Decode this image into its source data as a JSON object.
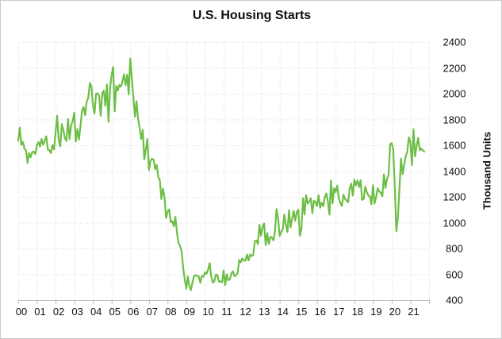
{
  "chart_data": {
    "type": "line",
    "title": "U.S. Housing Starts",
    "xlabel": "",
    "ylabel": "Thousand Units",
    "y_axis_side": "right",
    "ylim": [
      400,
      2400
    ],
    "y_ticks": [
      400,
      600,
      800,
      1000,
      1200,
      1400,
      1600,
      1800,
      2000,
      2200,
      2400
    ],
    "x_tick_labels": [
      "00",
      "01",
      "02",
      "03",
      "04",
      "05",
      "06",
      "07",
      "08",
      "09",
      "10",
      "11",
      "12",
      "13",
      "14",
      "15",
      "16",
      "17",
      "18",
      "19",
      "20",
      "21"
    ],
    "x_years_span": 22,
    "frequency": "monthly",
    "x_start": "2000-01",
    "x_end": "2021-10",
    "grid": "dotted",
    "legend": "none",
    "colors": {
      "line": "#6cbe45",
      "gridline": "#d9d9d9",
      "axis": "#bfbfbf",
      "text": "#111111"
    },
    "series": [
      {
        "name": "U.S. Housing Starts (Thousand Units)",
        "values": [
          1636,
          1737,
          1604,
          1626,
          1575,
          1559,
          1463,
          1541,
          1507,
          1549,
          1551,
          1532,
          1600,
          1625,
          1590,
          1649,
          1605,
          1636,
          1670,
          1567,
          1562,
          1540,
          1602,
          1568,
          1698,
          1829,
          1642,
          1592,
          1764,
          1717,
          1655,
          1633,
          1804,
          1648,
          1753,
          1788,
          1853,
          1629,
          1726,
          1643,
          1751,
          1867,
          1897,
          1833,
          1939,
          1967,
          2083,
          2057,
          1911,
          1846,
          1998,
          2003,
          1981,
          1828,
          2002,
          2024,
          1905,
          2072,
          1782,
          2042,
          2144,
          2207,
          1864,
          2061,
          2025,
          2068,
          2054,
          2095,
          2151,
          2065,
          2147,
          1994,
          2273,
          2119,
          1969,
          1821,
          1942,
          1802,
          1737,
          1650,
          1720,
          1491,
          1570,
          1649,
          1409,
          1480,
          1495,
          1490,
          1415,
          1448,
          1354,
          1330,
          1183,
          1264,
          1197,
          1037,
          1084,
          1103,
          1005,
          1013,
          973,
          1046,
          923,
          844,
          820,
          777,
          652,
          560,
          490,
          582,
          505,
          478,
          540,
          585,
          594,
          586,
          585,
          534,
          588,
          581,
          614,
          604,
          636,
          687,
          583,
          536,
          546,
          599,
          594,
          543,
          545,
          539,
          630,
          517,
          600,
          554,
          561,
          608,
          623,
          585,
          594,
          610,
          711,
          694,
          723,
          707,
          706,
          754,
          706,
          754,
          741,
          749,
          854,
          863,
          834,
          983,
          898,
          969,
          994,
          826,
          919,
          835,
          891,
          885,
          863,
          936,
          1105,
          1034,
          897,
          928,
          950,
          1063,
          984,
          927,
          1098,
          963,
          1028,
          1092,
          1015,
          1081,
          1101,
          900,
          954,
          1190,
          1063,
          1213,
          1147,
          1164,
          1189,
          1073,
          1171,
          1160,
          1128,
          1213,
          1116,
          1155,
          1128,
          1195,
          1226,
          1164,
          1062,
          1328,
          1149,
          1268,
          1236,
          1288,
          1189,
          1154,
          1129,
          1217,
          1185,
          1172,
          1158,
          1265,
          1303,
          1210,
          1334,
          1290,
          1327,
          1276,
          1329,
          1177,
          1184,
          1279,
          1237,
          1211,
          1202,
          1142,
          1291,
          1149,
          1199,
          1267,
          1241,
          1233,
          1204,
          1375,
          1270,
          1340,
          1371,
          1608,
          1617,
          1567,
          1269,
          934,
          1038,
          1273,
          1497,
          1376,
          1448,
          1514,
          1551,
          1661,
          1625,
          1447,
          1725,
          1514,
          1594,
          1657,
          1562,
          1576,
          1559,
          1552
        ]
      }
    ]
  }
}
